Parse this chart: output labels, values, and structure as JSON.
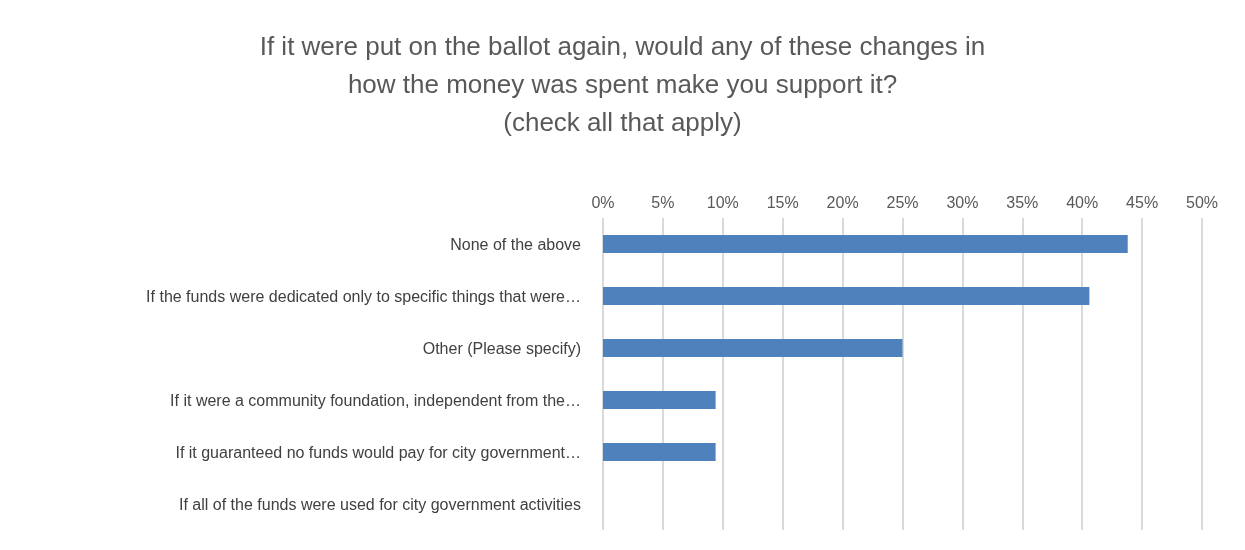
{
  "chart_data": {
    "type": "bar",
    "orientation": "horizontal",
    "title": "If it were put on the ballot again, would any of these changes in\nhow the money was spent make you support it?\n(check all that apply)",
    "categories": [
      "None of the above",
      "If the funds were dedicated only to specific things that were…",
      "Other (Please specify)",
      "If it were a community foundation, independent from the…",
      "If it guaranteed no funds would pay for city government…",
      "If all of the funds were used for city government activities"
    ],
    "values": [
      43.8,
      40.6,
      25.0,
      9.4,
      9.4,
      0
    ],
    "color": "#4f81bd",
    "xlim": [
      0,
      50
    ],
    "xticks": [
      {
        "value": 0,
        "label": "0%"
      },
      {
        "value": 5,
        "label": "5%"
      },
      {
        "value": 10,
        "label": "10%"
      },
      {
        "value": 15,
        "label": "15%"
      },
      {
        "value": 20,
        "label": "20%"
      },
      {
        "value": 25,
        "label": "25%"
      },
      {
        "value": 30,
        "label": "30%"
      },
      {
        "value": 35,
        "label": "35%"
      },
      {
        "value": 40,
        "label": "40%"
      },
      {
        "value": 45,
        "label": "45%"
      },
      {
        "value": 50,
        "label": "50%"
      }
    ],
    "grid": "x"
  }
}
